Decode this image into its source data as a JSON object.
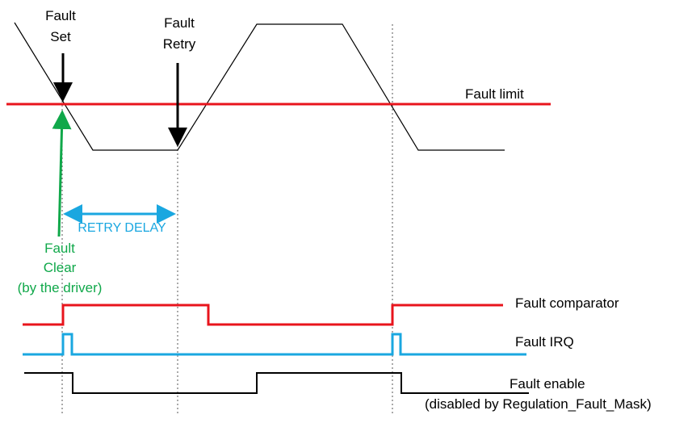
{
  "labels": {
    "fault_set": [
      "Fault",
      "Set"
    ],
    "fault_retry": [
      "Fault",
      "Retry"
    ],
    "fault_limit": "Fault limit",
    "retry_delay": "RETRY DELAY",
    "fault_clear": [
      "Fault",
      "Clear",
      "(by the driver)"
    ],
    "fault_comparator": "Fault comparator",
    "fault_irq": "Fault IRQ",
    "fault_enable": "Fault enable",
    "fault_enable_note": "(disabled by Regulation_Fault_Mask)"
  },
  "colors": {
    "fault_limit": "#e8141c",
    "fault_comparator": "#e8141c",
    "fault_irq": "#1aa7e0",
    "retry_delay": "#1aa7e0",
    "fault_clear": "#10a84a",
    "fault_enable": "#000000",
    "analog_signal": "#000000",
    "markers": "#000000",
    "text": "#000000"
  }
}
